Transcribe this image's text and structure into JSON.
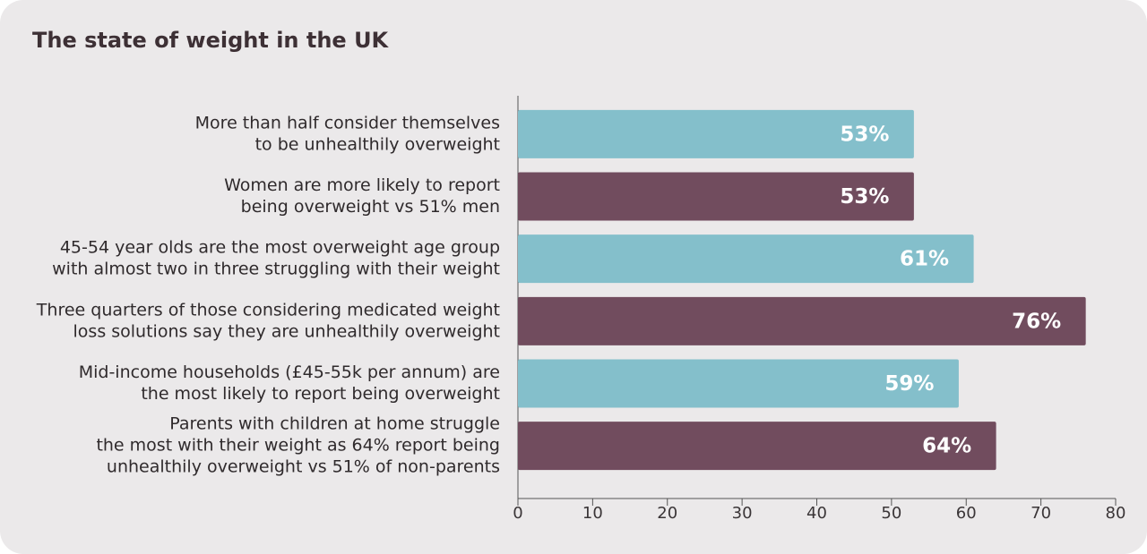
{
  "chart_data": {
    "type": "barh",
    "title": "The state of weight in the UK",
    "categories": [
      [
        "More than half consider themselves",
        "to be unhealthily overweight"
      ],
      [
        "Women are more likely to report",
        "being overweight vs 51% men"
      ],
      [
        "45-54 year olds are the most overweight age group",
        "with almost two in three struggling with their weight"
      ],
      [
        "Three quarters of those considering medicated weight",
        "loss solutions say they are unhealthily overweight"
      ],
      [
        "Mid-income households (£45-55k per annum) are",
        "the most likely to report being overweight"
      ],
      [
        "Parents with children at home struggle",
        "the most with their weight as 64% report being",
        "unhealthily overweight vs 51% of non-parents"
      ]
    ],
    "values": [
      53,
      53,
      61,
      76,
      59,
      64
    ],
    "value_labels": [
      "53%",
      "53%",
      "61%",
      "76%",
      "59%",
      "64%"
    ],
    "colors": [
      "#84bfcb",
      "#714c5e",
      "#84bfcb",
      "#714c5e",
      "#84bfcb",
      "#714c5e"
    ],
    "xlim": [
      0,
      80
    ],
    "xticks": [
      0,
      10,
      20,
      30,
      40,
      50,
      60,
      70,
      80
    ],
    "grid": false
  }
}
